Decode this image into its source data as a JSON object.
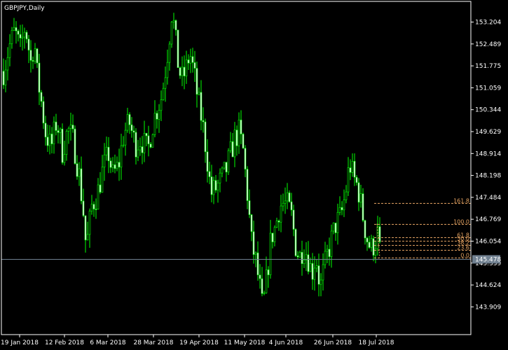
{
  "window": {
    "title": "GBPJPY,Daily"
  },
  "colors": {
    "background": "#000000",
    "frame": "#ffffff",
    "candle_up_body": "#000000",
    "candle_down_body": "#ffffff",
    "candle_outline": "#00ff00",
    "fib_line": "#e0a060",
    "fib_text": "#e0a060",
    "bid_line": "#708090",
    "price_tag_bg": "#708090",
    "axis_text": "#ffffff"
  },
  "chart_data": {
    "type": "candlestick",
    "symbol": "GBPJPY",
    "timeframe": "Daily",
    "ylim": [
      143.4,
      154.0
    ],
    "y_ticks": [
      "153.204",
      "152.489",
      "151.775",
      "151.059",
      "150.344",
      "149.629",
      "148.914",
      "148.198",
      "147.484",
      "146.769",
      "146.054",
      "145.339",
      "144.624",
      "143.909"
    ],
    "x_ticks": [
      "19 Jan 2018",
      "12 Feb 2018",
      "6 Mar 2018",
      "28 Mar 2018",
      "19 Apr 2018",
      "11 May 2018",
      "4 Jun 2018",
      "26 Jun 2018",
      "18 Jul 2018"
    ],
    "current_price": "145.478",
    "fibonacci_levels": [
      {
        "label": "161.8",
        "price": 147.3
      },
      {
        "label": "100.0",
        "price": 146.62
      },
      {
        "label": "61.8",
        "price": 146.19
      },
      {
        "label": "50.0",
        "price": 146.06
      },
      {
        "label": "38.2",
        "price": 145.92
      },
      {
        "label": "23.6",
        "price": 145.77
      },
      {
        "label": "0.0",
        "price": 145.52
      }
    ]
  }
}
